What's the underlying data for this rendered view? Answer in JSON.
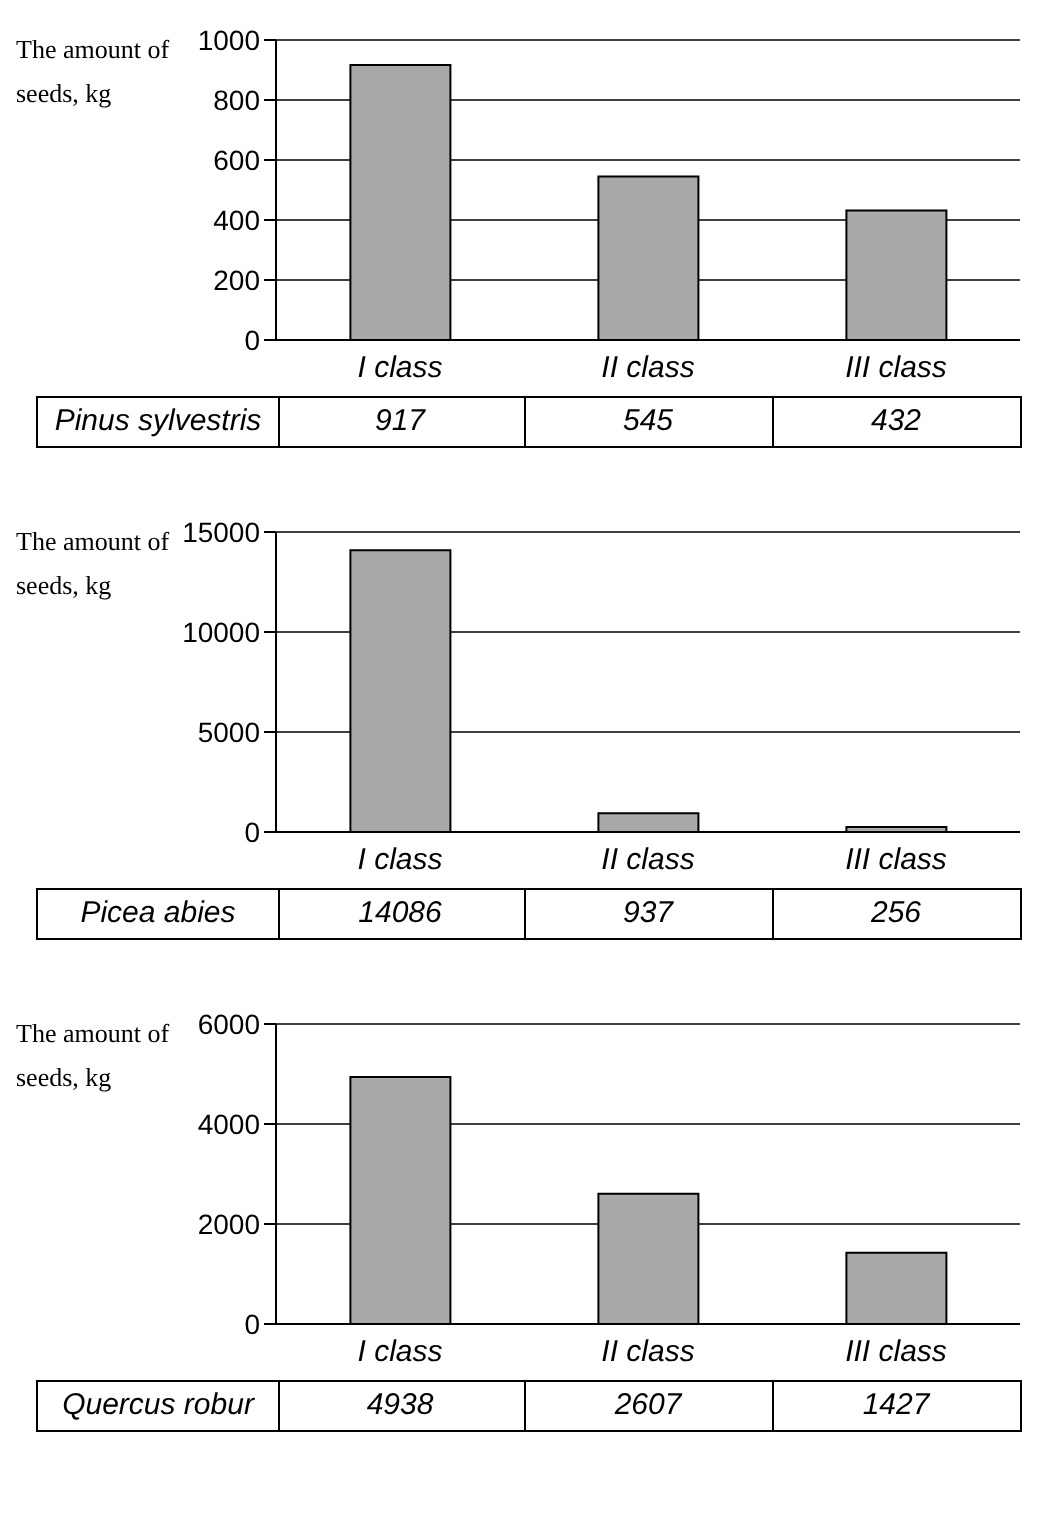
{
  "chart_data": [
    {
      "type": "bar",
      "ylabel": "The amount of seeds, kg",
      "categories": [
        "I class",
        "II class",
        "III class"
      ],
      "series": [
        {
          "name": "Pinus sylvestris",
          "color": "#a9a9a9",
          "values": [
            917,
            545,
            432
          ]
        }
      ],
      "ylim": [
        0,
        1000
      ],
      "yticks": [
        0,
        200,
        400,
        600,
        800,
        1000
      ],
      "grid": "y",
      "data_labels": true
    },
    {
      "type": "bar",
      "ylabel": "The amount of seeds, kg",
      "categories": [
        "I class",
        "II class",
        "III class"
      ],
      "series": [
        {
          "name": "Picea abies",
          "color": "#a9a9a9",
          "values": [
            14086,
            937,
            256
          ]
        }
      ],
      "ylim": [
        0,
        15000
      ],
      "yticks": [
        0,
        5000,
        10000,
        15000
      ],
      "grid": "y",
      "data_labels": true
    },
    {
      "type": "bar",
      "ylabel": "The amount of seeds, kg",
      "categories": [
        "I class",
        "II class",
        "III class"
      ],
      "series": [
        {
          "name": "Quercus robur",
          "color": "#a9a9a9",
          "values": [
            4938,
            2607,
            1427
          ]
        }
      ],
      "ylim": [
        0,
        6000
      ],
      "yticks": [
        0,
        2000,
        4000,
        6000
      ],
      "grid": "y",
      "data_labels": true
    }
  ]
}
